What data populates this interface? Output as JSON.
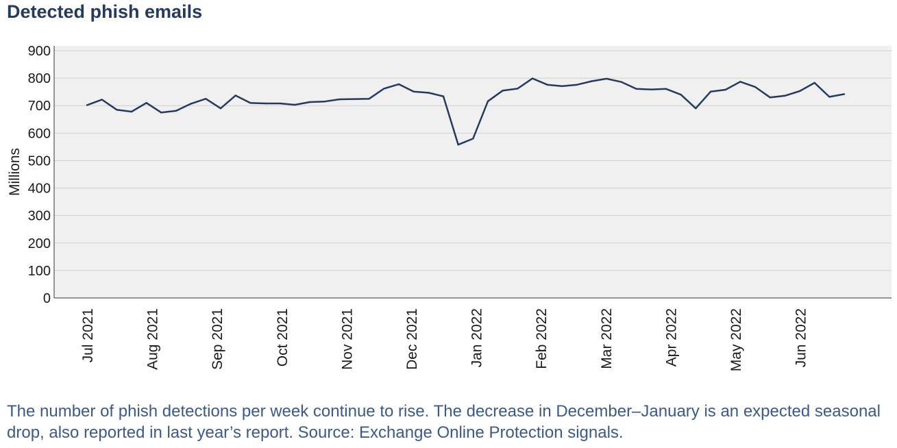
{
  "chart_data": {
    "type": "line",
    "title": "Detected phish emails",
    "ylabel": "Millions",
    "xlabel": "",
    "ylim": [
      0,
      900
    ],
    "yticks": [
      0,
      100,
      200,
      300,
      400,
      500,
      600,
      700,
      800,
      900
    ],
    "xtick_labels": [
      "Jul 2021",
      "Aug 2021",
      "Sep 2021",
      "Oct 2021",
      "Nov 2021",
      "Dec 2021",
      "Jan 2022",
      "Feb 2022",
      "Mar 2022",
      "Apr 2022",
      "May 2022",
      "Jun 2022"
    ],
    "grid": true,
    "line_color": "#243a5e",
    "series": [
      {
        "x": [
          "2021-07-01",
          "2021-07-08",
          "2021-07-15",
          "2021-07-22",
          "2021-07-29",
          "2021-08-05",
          "2021-08-12",
          "2021-08-19",
          "2021-08-26",
          "2021-09-02",
          "2021-09-09",
          "2021-09-16",
          "2021-09-23",
          "2021-09-30",
          "2021-10-07",
          "2021-10-14",
          "2021-10-21",
          "2021-10-28",
          "2021-11-04",
          "2021-11-11",
          "2021-11-18",
          "2021-11-25",
          "2021-12-02",
          "2021-12-09",
          "2021-12-16",
          "2021-12-23",
          "2021-12-30",
          "2022-01-06",
          "2022-01-13",
          "2022-01-20",
          "2022-01-27",
          "2022-02-03",
          "2022-02-10",
          "2022-02-17",
          "2022-02-24",
          "2022-03-03",
          "2022-03-10",
          "2022-03-17",
          "2022-03-24",
          "2022-03-31",
          "2022-04-07",
          "2022-04-14",
          "2022-04-21",
          "2022-04-28",
          "2022-05-05",
          "2022-05-12",
          "2022-05-19",
          "2022-05-26",
          "2022-06-02",
          "2022-06-09",
          "2022-06-16",
          "2022-06-23"
        ],
        "values": [
          702,
          722,
          685,
          678,
          710,
          675,
          681,
          707,
          725,
          690,
          737,
          710,
          708,
          708,
          703,
          713,
          715,
          723,
          724,
          725,
          762,
          778,
          751,
          747,
          734,
          558,
          580,
          716,
          755,
          762,
          799,
          776,
          771,
          776,
          789,
          798,
          786,
          761,
          759,
          761,
          740,
          690,
          751,
          758,
          787,
          768,
          730,
          736,
          753,
          783,
          732,
          742
        ]
      }
    ]
  },
  "caption": "The number of phish detections per week continue to rise. The decrease in December–January is an expected seasonal drop, also reported in last year’s report. Source: Exchange Online Protection signals."
}
